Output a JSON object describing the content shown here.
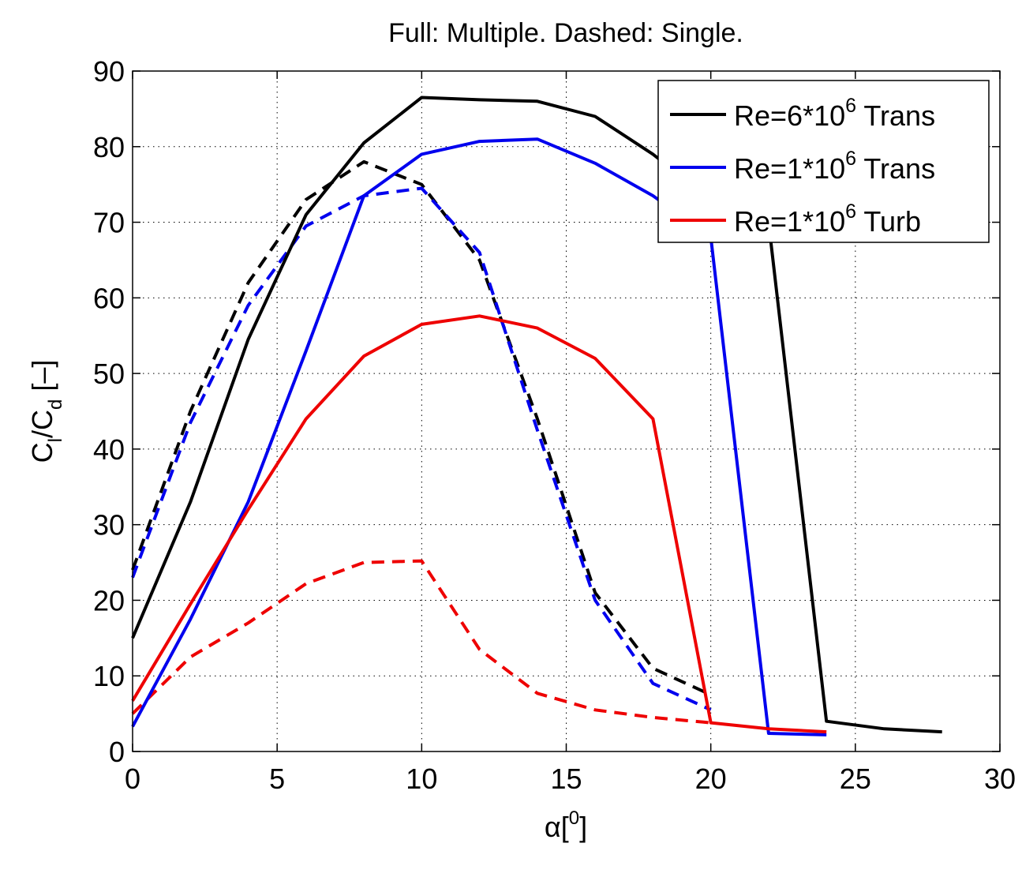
{
  "chart_data": {
    "type": "line",
    "title": "Full: Multiple.  Dashed: Single.",
    "xlabel": {
      "symbol": "α",
      "open": "[",
      "sup": "0",
      "close": "]"
    },
    "ylabel": {
      "main": "C",
      "sub1": "l",
      "slash": "/C",
      "sub2": "d",
      "unit": " [–]"
    },
    "xlim": [
      0,
      30
    ],
    "ylim": [
      0,
      90
    ],
    "xticks": [
      0,
      5,
      10,
      15,
      20,
      25,
      30
    ],
    "yticks": [
      0,
      10,
      20,
      30,
      40,
      50,
      60,
      70,
      80,
      90
    ],
    "grid": true,
    "legend_position": "top-right",
    "series": [
      {
        "name": "Re=6*10^6 Trans",
        "legend": {
          "base": "Re=6*10",
          "exp": "6",
          "suffix": " Trans"
        },
        "color": "#000000",
        "style": "solid",
        "x": [
          0,
          2,
          4,
          6,
          8,
          10,
          12,
          14,
          16,
          18,
          20,
          22,
          24,
          26,
          28
        ],
        "y": [
          15,
          33,
          54.5,
          71,
          80.5,
          86.5,
          86.2,
          86,
          84,
          79,
          73,
          70,
          4,
          3,
          2.6
        ]
      },
      {
        "name": "Re=1*10^6 Trans",
        "legend": {
          "base": "Re=1*10",
          "exp": "6",
          "suffix": " Trans"
        },
        "color": "#0000ee",
        "style": "solid",
        "x": [
          0,
          2,
          4,
          6,
          8,
          10,
          12,
          14,
          16,
          18,
          20,
          22,
          24
        ],
        "y": [
          3.3,
          17.5,
          33,
          53,
          73.5,
          79,
          80.7,
          81,
          77.8,
          73.5,
          68,
          2.4,
          2.2
        ]
      },
      {
        "name": "Re=1*10^6 Turb",
        "legend": {
          "base": "Re=1*10",
          "exp": "6",
          "suffix": " Turb"
        },
        "color": "#ee0000",
        "style": "solid",
        "x": [
          0,
          2,
          4,
          6,
          8,
          10,
          12,
          14,
          16,
          18,
          20,
          22,
          24
        ],
        "y": [
          6.7,
          19.5,
          32,
          44,
          52.3,
          56.5,
          57.6,
          56,
          52,
          44,
          3.8,
          3,
          2.6
        ]
      },
      {
        "name": "",
        "color": "#000000",
        "style": "dashed",
        "x": [
          0,
          2,
          4,
          6,
          8,
          10,
          12,
          14,
          16,
          18,
          20
        ],
        "y": [
          24,
          45,
          62,
          73,
          78,
          75,
          65,
          44,
          21,
          11,
          7.5
        ]
      },
      {
        "name": "",
        "color": "#0000ee",
        "style": "dashed",
        "x": [
          0,
          2,
          4,
          6,
          8,
          10,
          12,
          14,
          16,
          18,
          20
        ],
        "y": [
          23,
          43.5,
          59,
          69.5,
          73.5,
          74.5,
          66,
          42.5,
          20,
          9,
          5.5
        ]
      },
      {
        "name": "",
        "color": "#ee0000",
        "style": "dashed",
        "x": [
          0,
          2,
          4,
          6,
          8,
          10,
          12,
          14,
          16,
          18,
          20
        ],
        "y": [
          5,
          12.5,
          17,
          22.2,
          25,
          25.2,
          13.5,
          7.7,
          5.5,
          4.5,
          3.8
        ]
      }
    ]
  }
}
